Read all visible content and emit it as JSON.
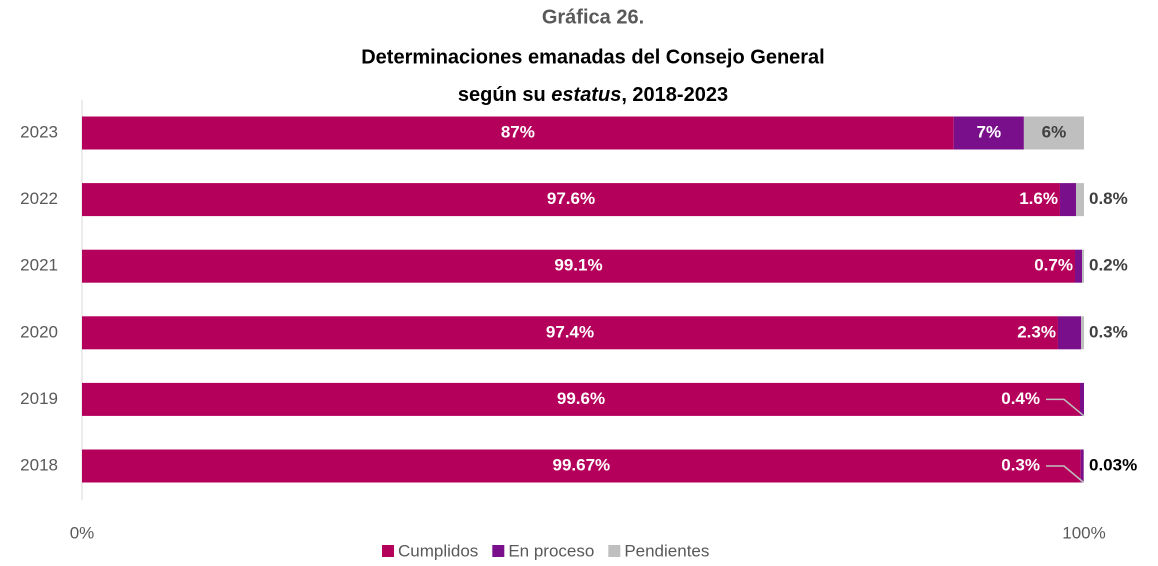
{
  "chart_data": {
    "type": "stacked_bar_horizontal",
    "title": [
      "Gráfica 26.",
      "Determinaciones emanadas del Consejo General",
      [
        "según su ",
        "estatus",
        ", 2018-2023"
      ]
    ],
    "categories": [
      "2023",
      "2022",
      "2021",
      "2020",
      "2019",
      "2018"
    ],
    "series": [
      {
        "name": "Cumplidos",
        "color": "#b5005b",
        "values": [
          87,
          97.6,
          99.1,
          97.4,
          99.6,
          99.67
        ],
        "value_labels": [
          "87%",
          "97.6%",
          "99.1%",
          "97.4%",
          "99.6%",
          "99.67%"
        ]
      },
      {
        "name": "En proceso",
        "color": "#7a0f8c",
        "values": [
          7,
          1.6,
          0.7,
          2.3,
          0.4,
          0.3
        ],
        "value_labels": [
          "7%",
          "1.6%",
          "0.7%",
          "2.3%",
          "0.4%",
          "0.3%"
        ]
      },
      {
        "name": "Pendientes",
        "color": "#bfbfbf",
        "values": [
          6,
          0.8,
          0.2,
          0.3,
          null,
          0.03
        ],
        "value_labels": [
          "6%",
          "0.8%",
          "0.2%",
          "0.3%",
          null,
          "0.03%"
        ]
      }
    ],
    "xlim": [
      0,
      100
    ],
    "xticks": [
      {
        "value": 0,
        "label": "0%"
      },
      {
        "value": 100,
        "label": "100%"
      }
    ],
    "legend": "bottom"
  }
}
